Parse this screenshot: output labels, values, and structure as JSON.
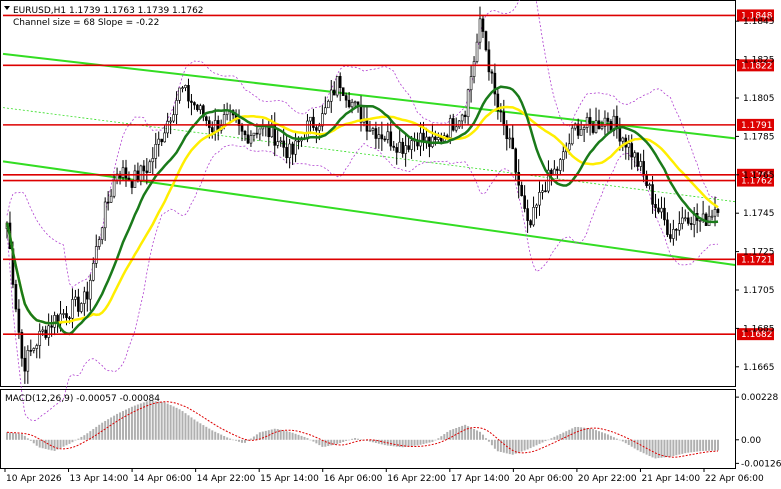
{
  "header": {
    "symbol_line": "EURUSD,H1  1.1739 1.1763 1.1739 1.1762",
    "channel_line": "Channel size = 68 Slope = -0.22"
  },
  "macd": {
    "label": "MACD(12,26,9) -0.00057 -0.00084",
    "ticks": [
      0.00228,
      0.0,
      -0.00126
    ],
    "tick_labels": [
      "0.00228",
      "0.00",
      "-0.00126"
    ]
  },
  "chart_data": {
    "type": "candlestick",
    "symbol": "EURUSD",
    "timeframe": "H1",
    "ylim": [
      1.1655,
      1.1855
    ],
    "y_ticks": [
      1.1665,
      1.1685,
      1.1705,
      1.1725,
      1.1745,
      1.1765,
      1.1785,
      1.1805,
      1.1825,
      1.1845
    ],
    "y_tick_labels": [
      "1.1665",
      "1.1685",
      "1.1705",
      "1.1725",
      "1.1745",
      "1.1765",
      "1.1785",
      "1.1805",
      "1.1825",
      "1.1845"
    ],
    "x_labels": [
      "10 Apr 2026",
      "13 Apr 14:00",
      "14 Apr 06:00",
      "14 Apr 22:00",
      "15 Apr 14:00",
      "16 Apr 06:00",
      "16 Apr 22:00",
      "17 Apr 14:00",
      "20 Apr 06:00",
      "20 Apr 22:00",
      "21 Apr 14:00",
      "22 Apr 06:00"
    ],
    "levels": [
      {
        "value": 1.1848,
        "label": "1.1848"
      },
      {
        "value": 1.1822,
        "label": "1.1822"
      },
      {
        "value": 1.1791,
        "label": "1.1791"
      },
      {
        "value": 1.1765,
        "label": "1.1765"
      },
      {
        "value": 1.1762,
        "label": "1.1762"
      },
      {
        "value": 1.1721,
        "label": "1.1721"
      },
      {
        "value": 1.1682,
        "label": "1.1682"
      }
    ],
    "channel": {
      "upper_start": 1.1828,
      "upper_end": 1.1784,
      "lower_start": 1.1772,
      "lower_end": 1.1718,
      "mid_start": 1.18,
      "mid_end": 1.1751
    },
    "candle_anchors": [
      1.174,
      1.1665,
      1.168,
      1.169,
      1.1695,
      1.17,
      1.174,
      1.1768,
      1.1762,
      1.177,
      1.179,
      1.181,
      1.18,
      1.179,
      1.1795,
      1.1785,
      1.179,
      1.1785,
      1.1775,
      1.179,
      1.1795,
      1.1815,
      1.18,
      1.179,
      1.1785,
      1.178,
      1.1785,
      1.178,
      1.179,
      1.18,
      1.1845,
      1.18,
      1.1775,
      1.1735,
      1.176,
      1.177,
      1.179,
      1.179,
      1.1795,
      1.1785,
      1.177,
      1.175,
      1.1735,
      1.1745,
      1.174,
      1.175
    ],
    "macd_hist": [
      0.0004,
      0.0003,
      -0.0004,
      -0.0006,
      -0.0002,
      0.0003,
      0.0009,
      0.0014,
      0.0018,
      0.0021,
      0.002,
      0.0016,
      0.001,
      0.0005,
      0.0001,
      -0.0002,
      0.0004,
      0.0006,
      0.0004,
      0.0001,
      -0.0004,
      -0.0002,
      0.0001,
      -0.0001,
      -0.0003,
      -0.0004,
      -0.0003,
      -0.0001,
      0.0005,
      0.0008,
      0.0004,
      -0.0006,
      -0.0008,
      -0.0005,
      -0.0001,
      0.0003,
      0.0007,
      0.0006,
      0.0003,
      -0.0001,
      -0.0006,
      -0.001,
      -0.0009,
      -0.0007,
      -0.0006,
      -0.00057
    ],
    "colors": {
      "level_line": "#dd0000",
      "level_label_bg": "#dd0000",
      "channel": "#33dd22",
      "ma_fast": "#1a7a1a",
      "ma_slow": "#ffee00",
      "bollinger": "#b040d0",
      "candle": "#000000",
      "macd_hist": "#b0b0b0",
      "macd_signal": "#dd0000"
    }
  }
}
